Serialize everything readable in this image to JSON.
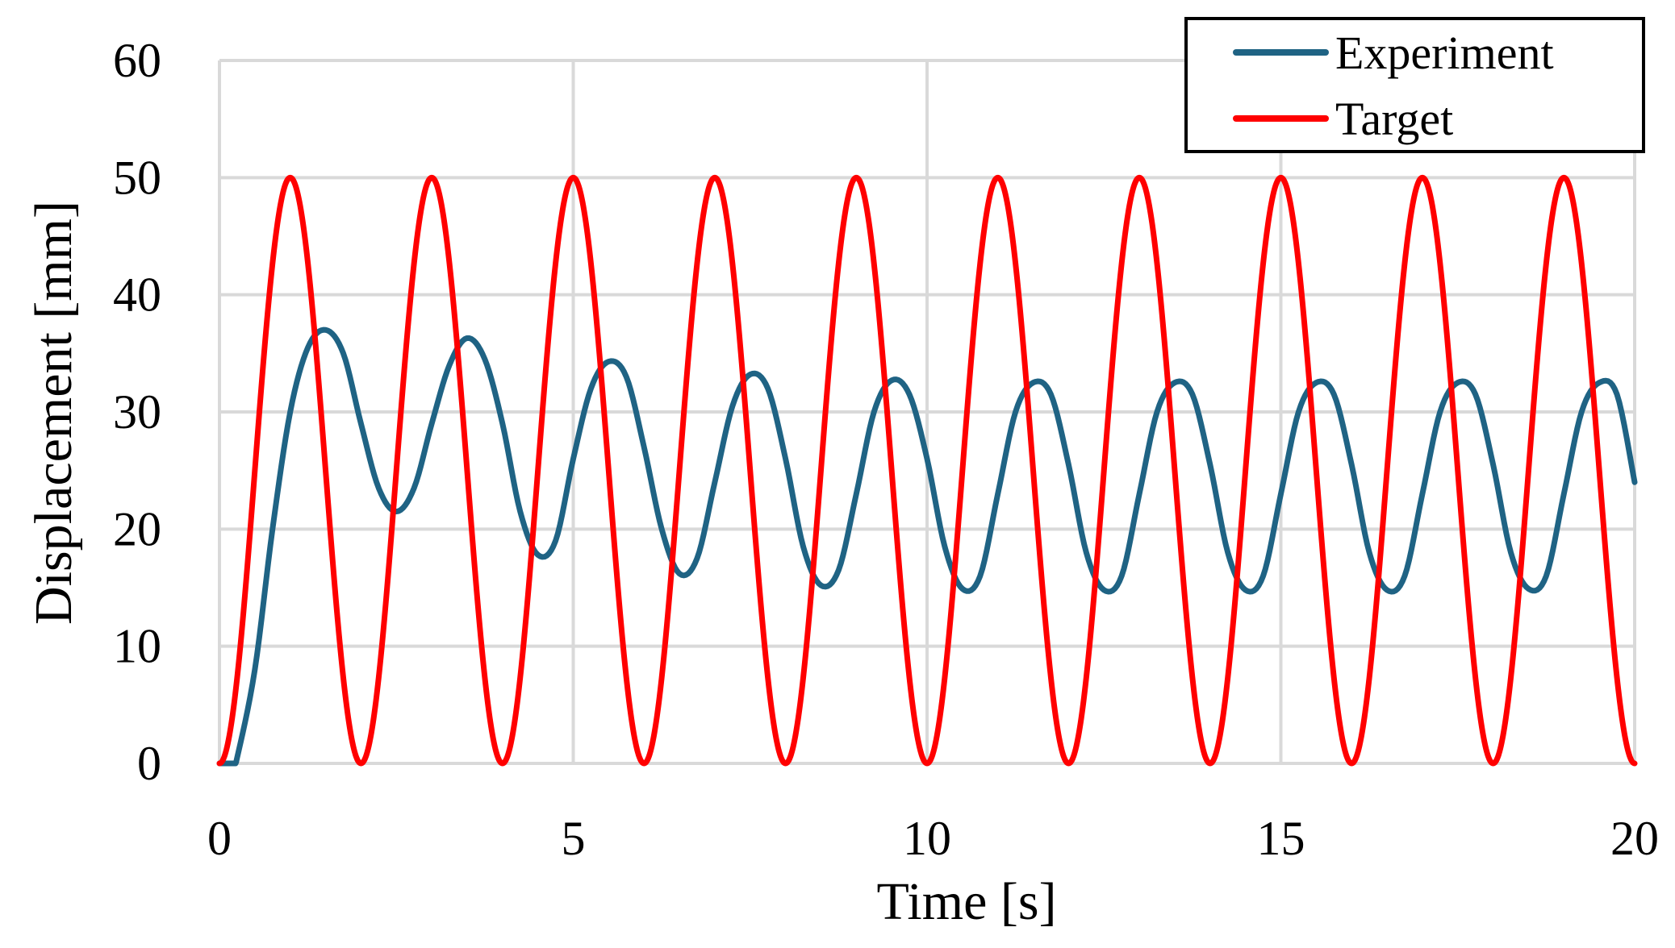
{
  "chart_data": {
    "type": "line",
    "title": "",
    "xlabel": "Time [s]",
    "ylabel": "Displacement [mm]",
    "xlim": [
      0,
      20
    ],
    "ylim": [
      0,
      60
    ],
    "xticks": [
      0,
      5,
      10,
      15,
      20
    ],
    "yticks": [
      0,
      10,
      20,
      30,
      40,
      50,
      60
    ],
    "grid": true,
    "legend_position": "top-right",
    "series": [
      {
        "name": "Experiment",
        "color": "#1f6384",
        "x": [
          0,
          0.2,
          0.25,
          0.5,
          0.75,
          1.0,
          1.25,
          1.5,
          1.75,
          2.0,
          2.25,
          2.5,
          2.75,
          3.0,
          3.25,
          3.5,
          3.75,
          4.0,
          4.25,
          4.5,
          4.75,
          5.0,
          5.25,
          5.5,
          5.75,
          6.0,
          6.25,
          6.5,
          6.75,
          7.0,
          7.25,
          7.5,
          7.75,
          8.0,
          8.25,
          8.5,
          8.75,
          9.0,
          9.25,
          9.5,
          9.75,
          10.0,
          10.25,
          10.5,
          10.75,
          11.0,
          11.25,
          11.5,
          11.75,
          12.0,
          12.25,
          12.5,
          12.75,
          13.0,
          13.25,
          13.5,
          13.75,
          14.0,
          14.25,
          14.5,
          14.75,
          15.0,
          15.25,
          15.5,
          15.75,
          16.0,
          16.25,
          16.5,
          16.75,
          17.0,
          17.25,
          17.5,
          17.75,
          18.0,
          18.25,
          18.5,
          18.75,
          19.0,
          19.25,
          19.5,
          19.75,
          20.0
        ],
        "y": [
          0,
          0,
          0.5,
          8,
          20,
          30,
          35.5,
          37,
          35,
          29,
          23.5,
          21.5,
          23.5,
          29,
          34,
          36.3,
          34.5,
          29,
          21.5,
          17.8,
          19,
          26,
          32,
          34.3,
          33,
          27,
          20,
          16.2,
          17.5,
          24,
          30.5,
          33.2,
          32,
          26,
          18.5,
          15.2,
          16.5,
          23,
          30,
          32.7,
          31.5,
          26,
          18.5,
          14.9,
          16,
          23,
          30,
          32.5,
          31.5,
          25.5,
          18,
          14.8,
          16,
          23,
          30,
          32.5,
          31.5,
          25.5,
          18,
          14.8,
          16,
          23,
          30,
          32.5,
          31.5,
          25.5,
          18,
          14.8,
          16,
          23,
          30,
          32.5,
          31.5,
          25.5,
          18,
          14.9,
          16,
          23,
          30,
          32.5,
          31.5,
          24
        ]
      },
      {
        "name": "Target",
        "color": "#ff0000",
        "function": "25 * (1 - cos(pi * t))",
        "amplitude": 25,
        "offset": 25,
        "period": 2,
        "x_start": 0,
        "x_end": 20,
        "peaks_y": 50,
        "troughs_y": 0
      }
    ]
  }
}
